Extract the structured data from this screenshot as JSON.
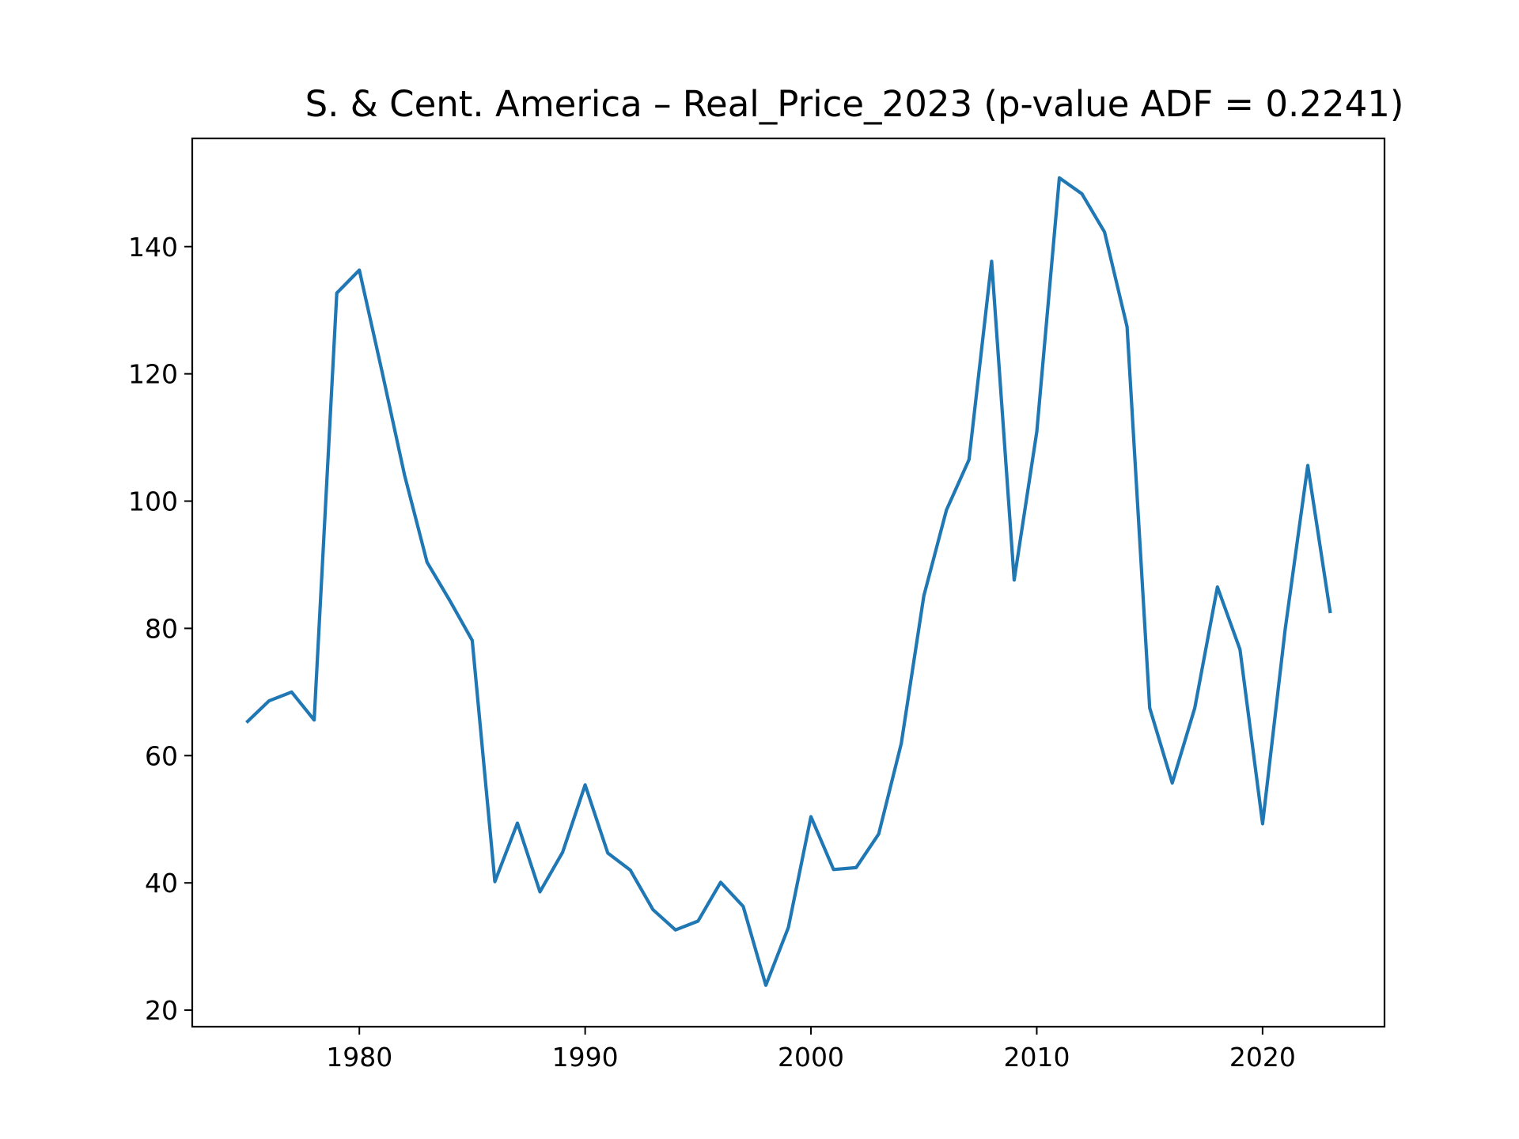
{
  "chart_data": {
    "type": "line",
    "title": "S. & Cent. America – Real_Price_2023 (p-value ADF = 0.2241)",
    "xlabel": "",
    "ylabel": "",
    "xlim": [
      1972.6,
      2025.4
    ],
    "ylim": [
      17.4,
      157.0
    ],
    "xticks": [
      1980,
      1990,
      2000,
      2010,
      2020
    ],
    "yticks": [
      20,
      40,
      60,
      80,
      100,
      120,
      140
    ],
    "grid": false,
    "legend": "none",
    "line_color": "#1f77b4",
    "series": [
      {
        "x": [
          1975,
          1976,
          1977,
          1978,
          1979,
          1980,
          1981,
          1982,
          1983,
          1984,
          1985,
          1986,
          1987,
          1988,
          1989,
          1990,
          1991,
          1992,
          1993,
          1994,
          1995,
          1996,
          1997,
          1998,
          1999,
          2000,
          2001,
          2002,
          2003,
          2004,
          2005,
          2006,
          2007,
          2008,
          2009,
          2010,
          2011,
          2012,
          2013,
          2014,
          2015,
          2016,
          2017,
          2018,
          2019,
          2020,
          2021,
          2022,
          2023
        ],
        "values": [
          65.2,
          68.6,
          70.0,
          65.6,
          132.7,
          136.3,
          120.4,
          104.1,
          90.4,
          84.4,
          78.1,
          40.2,
          49.4,
          38.6,
          44.8,
          55.4,
          44.7,
          42.0,
          35.8,
          32.6,
          34.0,
          40.1,
          36.3,
          23.9,
          33.0,
          50.4,
          42.1,
          42.4,
          47.7,
          61.9,
          85.1,
          98.6,
          106.5,
          137.7,
          87.6,
          110.9,
          150.8,
          148.3,
          142.3,
          127.4,
          67.5,
          55.7,
          67.5,
          86.5,
          76.7,
          49.3,
          79.8,
          105.6,
          82.4
        ]
      }
    ]
  }
}
